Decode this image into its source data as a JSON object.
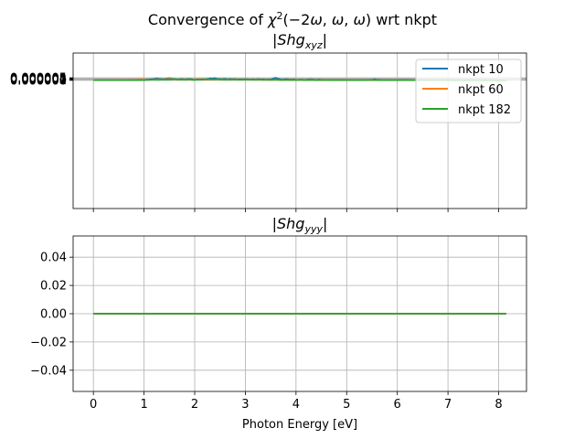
{
  "chart_data": [
    {
      "type": "line",
      "title_main": "Convergence of χ²(−2ω,ω,ω) wrt nkpt",
      "title": "|Shg_xyz|",
      "xlabel": "",
      "ylabel": "",
      "xlim": [
        -0.4,
        8.55
      ],
      "ylim": [
        -0.00025,
        5.32e-05
      ],
      "xticks": [
        0,
        1,
        2,
        3,
        4,
        5,
        6,
        7,
        8
      ],
      "yticks": [
        0,
        1e-06,
        2e-06,
        3e-06,
        4e-06,
        5e-06
      ],
      "ytick_labels": [
        "0.000000",
        "0.000001",
        "0.000002",
        "0.000003",
        "0.000004",
        "0.000005"
      ],
      "grid": true,
      "legend": "top-right",
      "series": [
        {
          "name": "nkpt 10",
          "color": "#1f77b4",
          "x": [
            0,
            0.5,
            0.8,
            1.0,
            1.1,
            1.2,
            1.25,
            1.3,
            1.35,
            1.4,
            1.5,
            1.55,
            1.6,
            1.65,
            1.7,
            1.75,
            1.8,
            1.85,
            1.9,
            1.95,
            2.0,
            2.05,
            2.1,
            2.15,
            2.2,
            2.25,
            2.3,
            2.35,
            2.4,
            2.45,
            2.5,
            2.55,
            2.6,
            2.65,
            2.7,
            2.75,
            2.8,
            2.85,
            2.9,
            2.95,
            3.0,
            3.05,
            3.1,
            3.15,
            3.2,
            3.25,
            3.3,
            3.35,
            3.4,
            3.45,
            3.5,
            3.55,
            3.6,
            3.65,
            3.7,
            3.75,
            3.8,
            3.85,
            3.9,
            3.95,
            4.0,
            4.05,
            4.1,
            4.15,
            4.2,
            4.25,
            4.3,
            4.35,
            4.4,
            4.45,
            4.5,
            4.6,
            4.7,
            4.8,
            4.9,
            5.0,
            5.1,
            5.2,
            5.3,
            5.4,
            5.5,
            5.55,
            5.6,
            5.7,
            5.8,
            5.9,
            6.0,
            6.1,
            6.2,
            6.3,
            6.4,
            6.5,
            6.6,
            6.7,
            6.8,
            6.9,
            7.0,
            7.1,
            7.2,
            7.3,
            7.4,
            7.5,
            7.6,
            7.7,
            7.8,
            7.9,
            8.0,
            8.1,
            8.15
          ],
          "y": [
            2e-07,
            3e-07,
            4.5e-07,
            8e-07,
            1.4e-06,
            2.7e-06,
            3.9e-06,
            3.2e-06,
            2.2e-06,
            2.4e-06,
            4.5e-06,
            3e-06,
            1.9e-06,
            1.5e-06,
            2e-06,
            2.6e-06,
            1.7e-06,
            2.2e-06,
            2.6e-06,
            1.8e-06,
            1.2e-06,
            1.5e-06,
            1.7e-06,
            1.2e-06,
            1.6e-06,
            2e-06,
            3.9e-06,
            3.7e-06,
            4.3e-06,
            2.9e-06,
            2.6e-06,
            2.4e-06,
            3e-06,
            2.1e-06,
            2.5e-06,
            2.1e-06,
            2.6e-06,
            1.8e-06,
            2e-06,
            1.4e-06,
            2.4e-06,
            1.7e-06,
            1.1e-06,
            1.6e-06,
            1.3e-06,
            2.6e-06,
            1.5e-06,
            1.6e-06,
            1.2e-06,
            1e-06,
            1.7e-06,
            3.6e-06,
            5.05e-06,
            3.5e-06,
            1.6e-06,
            1.3e-06,
            2.3e-06,
            1.6e-06,
            1.4e-06,
            1.8e-06,
            1.2e-06,
            1e-06,
            1.4e-06,
            8e-07,
            1.2e-06,
            1.8e-06,
            2.2e-06,
            1.3e-06,
            6e-07,
            1.4e-06,
            9e-07,
            6e-07,
            7e-07,
            5e-07,
            7e-07,
            4e-07,
            6e-07,
            7e-07,
            6e-07,
            4e-07,
            8e-07,
            2.15e-06,
            1.3e-06,
            6e-07,
            4e-07,
            1e-06,
            7e-07,
            5e-07,
            8e-07,
            4e-07,
            3e-07,
            4e-07,
            2e-07,
            3e-07,
            4e-07,
            2e-07,
            6e-07,
            2e-07,
            2e-07,
            1.5e-07,
            2e-07,
            1.5e-07,
            2e-07,
            2e-07,
            1.5e-07,
            4e-07,
            2e-07,
            5e-08,
            5e-08
          ]
        },
        {
          "name": "nkpt 60",
          "color": "#ff7f0e",
          "x": [
            0,
            0.5,
            0.75,
            0.85,
            0.9,
            0.95,
            1.0,
            1.05,
            1.1,
            1.15,
            1.2,
            1.3,
            1.35,
            1.4,
            1.45,
            1.5,
            1.55,
            1.6,
            1.65,
            1.7,
            1.75,
            1.8,
            1.85,
            1.9,
            1.95,
            2.0,
            2.05,
            2.1,
            2.15,
            2.2,
            2.25,
            2.3,
            2.35,
            2.4,
            2.45,
            2.5,
            2.55,
            2.6,
            2.65,
            2.7,
            2.75,
            2.8,
            2.85,
            2.9,
            2.95,
            3.0,
            3.05,
            3.1,
            3.15,
            3.2,
            3.25,
            3.3,
            3.35,
            3.4,
            3.45,
            3.5,
            3.6,
            3.7,
            3.8,
            3.9,
            4.0,
            4.1,
            4.2,
            4.3,
            4.4,
            4.5,
            4.6,
            4.7,
            4.8,
            4.9,
            5.0,
            5.1,
            5.2,
            5.3,
            5.4,
            5.5,
            5.6,
            5.7,
            5.8,
            5.9,
            6.0,
            6.1,
            6.2,
            6.3,
            6.4,
            6.5,
            6.6,
            6.7,
            6.8,
            6.9,
            7.0,
            7.1,
            7.2,
            7.3,
            7.4,
            7.5,
            7.6,
            7.7,
            7.8,
            7.9,
            8.0,
            8.1,
            8.15
          ],
          "y": [
            2e-07,
            3.5e-07,
            7e-07,
            1.2e-06,
            1.8e-06,
            2.2e-06,
            1.9e-06,
            1.1e-06,
            9e-07,
            1.2e-06,
            1.5e-06,
            2.2e-06,
            1.3e-06,
            1.9e-06,
            2.3e-06,
            3.1e-06,
            2.2e-06,
            1.7e-06,
            1.5e-06,
            1.3e-06,
            1.6e-06,
            2e-06,
            1.2e-06,
            1.5e-06,
            1e-06,
            1.6e-06,
            2.1e-06,
            2.6e-06,
            1.7e-06,
            1.4e-06,
            1.2e-06,
            1.8e-06,
            1.4e-06,
            1.9e-06,
            1.6e-06,
            1.4e-06,
            1.9e-06,
            1.5e-06,
            1.7e-06,
            1.3e-06,
            1.6e-06,
            2.1e-06,
            1.4e-06,
            1.2e-06,
            1.6e-06,
            1.8e-06,
            1.3e-06,
            1.5e-06,
            1.1e-06,
            1.4e-06,
            1.6e-06,
            1e-06,
            9e-07,
            1.2e-06,
            8e-07,
            1.1e-06,
            9e-07,
            1e-06,
            8e-07,
            1.2e-06,
            9e-07,
            1.3e-06,
            6e-07,
            1.4e-06,
            3e-07,
            3e-07,
            6e-07,
            4e-07,
            5e-07,
            3e-07,
            6e-07,
            4e-07,
            6e-07,
            3e-07,
            4e-07,
            3e-07,
            6e-07,
            2e-07,
            3e-07,
            5e-07,
            5e-07,
            3e-07,
            4e-07,
            2e-07,
            3e-07,
            2e-07,
            3e-07,
            1.5e-07,
            2e-07,
            3e-07,
            2.5e-07,
            1.5e-07,
            2e-07,
            1.5e-07,
            1e-07,
            2e-07,
            1.5e-07,
            1e-07,
            1e-07,
            2e-07,
            1e-07,
            5e-08,
            5e-08
          ]
        },
        {
          "name": "nkpt 182",
          "color": "#2ca02c",
          "x": [
            0,
            0.5,
            0.8,
            1.0,
            1.1,
            1.15,
            1.2,
            1.25,
            1.3,
            1.35,
            1.4,
            1.45,
            1.5,
            1.55,
            1.6,
            1.65,
            1.7,
            1.75,
            1.8,
            1.85,
            1.9,
            1.95,
            2.0,
            2.05,
            2.1,
            2.15,
            2.2,
            2.25,
            2.3,
            2.35,
            2.4,
            2.45,
            2.5,
            2.55,
            2.6,
            2.65,
            2.7,
            2.75,
            2.8,
            2.85,
            2.9,
            2.95,
            3.0,
            3.05,
            3.1,
            3.15,
            3.2,
            3.25,
            3.3,
            3.35,
            3.4,
            3.45,
            3.5,
            3.55,
            3.6,
            3.65,
            3.7,
            3.8,
            3.9,
            4.0,
            4.1,
            4.2,
            4.3,
            4.4,
            4.5,
            4.6,
            4.7,
            4.8,
            4.9,
            5.0,
            5.1,
            5.2,
            5.3,
            5.4,
            5.5,
            5.6,
            5.7,
            5.8,
            5.9,
            6.0,
            6.1,
            6.2,
            6.3,
            6.4,
            6.5,
            6.6,
            6.7,
            6.8,
            6.9,
            7.0,
            7.1,
            7.2,
            7.3,
            7.4,
            7.5,
            7.6,
            7.7,
            7.8,
            7.9,
            8.0,
            8.1,
            8.15
          ],
          "y": [
            2e-07,
            3e-07,
            4e-07,
            6e-07,
            9e-07,
            1.1e-06,
            1.3e-06,
            1.2e-06,
            1e-06,
            1.4e-06,
            1.2e-06,
            1.5e-06,
            1.3e-06,
            1.7e-06,
            2.6e-06,
            1.9e-06,
            1.4e-06,
            1.7e-06,
            1.3e-06,
            1.2e-06,
            2.2e-06,
            1e-06,
            8e-07,
            1.4e-06,
            1.2e-06,
            2.1e-06,
            1.9e-06,
            2.4e-06,
            2.2e-06,
            1.6e-06,
            1.9e-06,
            2.3e-06,
            1.7e-06,
            1.5e-06,
            1.3e-06,
            1.2e-06,
            1.4e-06,
            1.7e-06,
            1.3e-06,
            1.2e-06,
            1.5e-06,
            1.3e-06,
            1.6e-06,
            1.4e-06,
            1.2e-06,
            1.5e-06,
            9e-07,
            1.3e-06,
            1.7e-06,
            9e-07,
            1.1e-06,
            1.4e-06,
            8e-07,
            1.2e-06,
            1.4e-06,
            9e-07,
            6e-07,
            9e-07,
            5e-07,
            7e-07,
            9e-07,
            5e-07,
            8e-07,
            4e-07,
            6e-07,
            5e-07,
            4e-07,
            5e-07,
            3e-07,
            5e-07,
            4e-07,
            4e-07,
            3e-07,
            5e-07,
            7e-07,
            4e-07,
            3e-07,
            2e-07,
            3e-07,
            4e-07,
            5e-07,
            3e-07,
            2e-07,
            3e-07,
            2e-07,
            2e-07,
            1.5e-07,
            2e-07,
            1.5e-07,
            2e-07,
            1e-07,
            1.5e-07,
            1e-07,
            1.5e-07,
            1e-07,
            1e-07,
            1.5e-07,
            1e-07,
            1e-07,
            1e-07,
            5e-08,
            5e-08
          ]
        }
      ]
    },
    {
      "type": "line",
      "title": "|Shg_yyy|",
      "xlabel": "Photon Energy [eV]",
      "ylabel": "",
      "xlim": [
        -0.4,
        8.55
      ],
      "ylim": [
        -0.055,
        0.055
      ],
      "xticks": [
        0,
        1,
        2,
        3,
        4,
        5,
        6,
        7,
        8
      ],
      "xtick_labels": [
        "0",
        "1",
        "2",
        "3",
        "4",
        "5",
        "6",
        "7",
        "8"
      ],
      "yticks": [
        -0.04,
        -0.02,
        0.0,
        0.02,
        0.04
      ],
      "ytick_labels": [
        "−0.04",
        "−0.02",
        "0.00",
        "0.02",
        "0.04"
      ],
      "grid": true,
      "series": [
        {
          "name": "nkpt 10",
          "color": "#1f77b4",
          "x": [
            0,
            8.15
          ],
          "y": [
            0,
            0
          ]
        },
        {
          "name": "nkpt 60",
          "color": "#ff7f0e",
          "x": [
            0,
            8.15
          ],
          "y": [
            0,
            0
          ]
        },
        {
          "name": "nkpt 182",
          "color": "#2ca02c",
          "x": [
            0,
            8.15
          ],
          "y": [
            0,
            0
          ]
        }
      ]
    }
  ]
}
